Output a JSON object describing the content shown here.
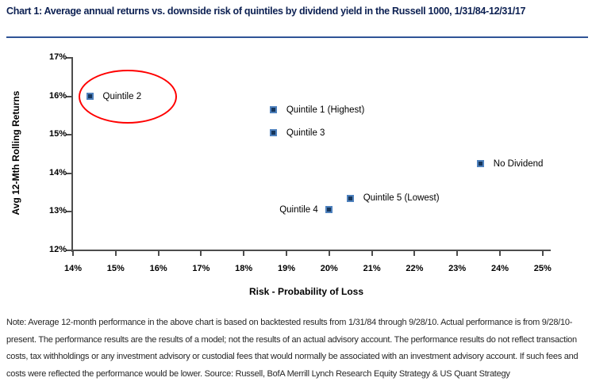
{
  "header": {
    "title": "Chart 1:  Average annual returns vs. downside risk of quintiles by dividend yield in the Russell 1000, 1/31/84-12/31/17"
  },
  "chart_data": {
    "type": "scatter",
    "title": "Average annual returns vs. downside risk of quintiles by dividend yield in the Russell 1000, 1/31/84-12/31/17",
    "xlabel": "Risk - Probability of Loss",
    "ylabel": "Avg 12-Mth Rolling Returns",
    "xlim": [
      14,
      25
    ],
    "ylim": [
      12,
      17
    ],
    "x_tick_step": 1,
    "y_tick_step": 1,
    "tick_suffix": "%",
    "grid": false,
    "legend": "none",
    "points": [
      {
        "label": "Quintile 2",
        "x": 14.4,
        "y": 16.0,
        "label_side": "right",
        "highlighted": true
      },
      {
        "label": "Quintile 1 (Highest)",
        "x": 18.7,
        "y": 15.65,
        "label_side": "right",
        "highlighted": false
      },
      {
        "label": "Quintile 3",
        "x": 18.7,
        "y": 15.05,
        "label_side": "right",
        "highlighted": false
      },
      {
        "label": "No Dividend",
        "x": 23.55,
        "y": 14.25,
        "label_side": "right",
        "highlighted": false
      },
      {
        "label": "Quintile 5 (Lowest)",
        "x": 20.5,
        "y": 13.35,
        "label_side": "right",
        "highlighted": false
      },
      {
        "label": "Quintile 4",
        "x": 20.0,
        "y": 13.05,
        "label_side": "left",
        "highlighted": false
      }
    ],
    "marker_style": {
      "fill": "#16365c",
      "border": "#4e81bd"
    },
    "annotation": {
      "type": "ellipse",
      "target": "Quintile 2",
      "color": "#ff0000"
    }
  },
  "footnote": {
    "text": "Note: Average 12-month performance in the above chart is based on backtested results from 1/31/84 through 9/28/10. Actual performance is from 9/28/10-present.  The performance results are the results of a model; not the results of an actual advisory account. The performance results do not reflect transaction costs, tax withholdings or any investment advisory or custodial fees that would normally be associated with an investment advisory account.  If such fees and costs were reflected the performance would be lower. Source: Russell, BofA Merrill Lynch Research Equity Strategy & US Quant Strategy"
  }
}
